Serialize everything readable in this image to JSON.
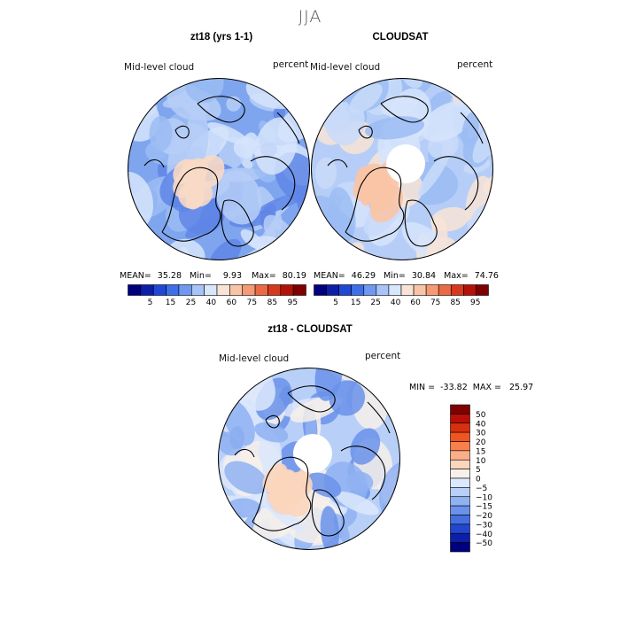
{
  "chart_data": [
    {
      "type": "heatmap",
      "projection": "north-polar-stereographic",
      "title": "zt18 (yrs 1-1)",
      "variable": "Mid-level cloud",
      "units": "percent",
      "stats": {
        "mean": "35.28",
        "min": "9.93",
        "max": "80.19"
      },
      "colorbar_levels": [
        "5",
        "15",
        "25",
        "40",
        "60",
        "75",
        "85",
        "95"
      ],
      "colorbar_colors": [
        "#00007f",
        "#0d1ea8",
        "#1f48d6",
        "#3e6ee8",
        "#6f98f2",
        "#a7c3f8",
        "#d8e6fb",
        "#f8e4d6",
        "#f9c4a6",
        "#f59a74",
        "#ea6a45",
        "#d7391c",
        "#b21207",
        "#7f0000"
      ]
    },
    {
      "type": "heatmap",
      "projection": "north-polar-stereographic",
      "title": "CLOUDSAT",
      "variable": "Mid-level cloud",
      "units": "percent",
      "stats": {
        "mean": "46.29",
        "min": "30.84",
        "max": "74.76"
      },
      "colorbar_levels": [
        "5",
        "15",
        "25",
        "40",
        "60",
        "75",
        "85",
        "95"
      ],
      "colorbar_colors": [
        "#00007f",
        "#0d1ea8",
        "#1f48d6",
        "#3e6ee8",
        "#6f98f2",
        "#a7c3f8",
        "#d8e6fb",
        "#f8e4d6",
        "#f9c4a6",
        "#f59a74",
        "#ea6a45",
        "#d7391c",
        "#b21207",
        "#7f0000"
      ]
    },
    {
      "type": "heatmap",
      "projection": "north-polar-stereographic",
      "title": "zt18 - CLOUDSAT",
      "variable": "Mid-level cloud",
      "units": "percent",
      "stats_text": {
        "min_label": "MIN =",
        "min": "-33.82",
        "max_label": "MAX =",
        "max": "25.97"
      },
      "colorbar_levels": [
        "50",
        "40",
        "30",
        "20",
        "15",
        "10",
        "5",
        "0",
        "−5",
        "−10",
        "−15",
        "−20",
        "−30",
        "−40",
        "−50"
      ],
      "colorbar_colors": [
        "#800000",
        "#b81008",
        "#d8300e",
        "#ef5520",
        "#f7804c",
        "#fbae88",
        "#fcd5bd",
        "#f7f0ea",
        "#dce8fb",
        "#b8d0f8",
        "#8fb2f2",
        "#6a92ea",
        "#456fe0",
        "#2346cf",
        "#0c1fa8",
        "#000080"
      ]
    }
  ],
  "figure": {
    "suptitle": "JJA"
  },
  "labels": {
    "mean": "MEAN=",
    "min": "Min=",
    "max": "Max="
  },
  "colors": {
    "frame": "#000000",
    "coast": "#000000",
    "missing": "#ffffff",
    "field_model": [
      "#7fa5ee",
      "#9bbcf3",
      "#b6cef7",
      "#5f86e6",
      "#d6e4fb",
      "#f8d9c5"
    ],
    "field_obs": [
      "#b6cef7",
      "#c9dbf9",
      "#d6e4fb",
      "#9bbcf3",
      "#f8e4d6",
      "#f9c4a6"
    ],
    "field_diff": [
      "#b8d0f8",
      "#dce8fb",
      "#8fb2f2",
      "#6a92ea",
      "#f7f0ea",
      "#fcd5bd"
    ]
  }
}
